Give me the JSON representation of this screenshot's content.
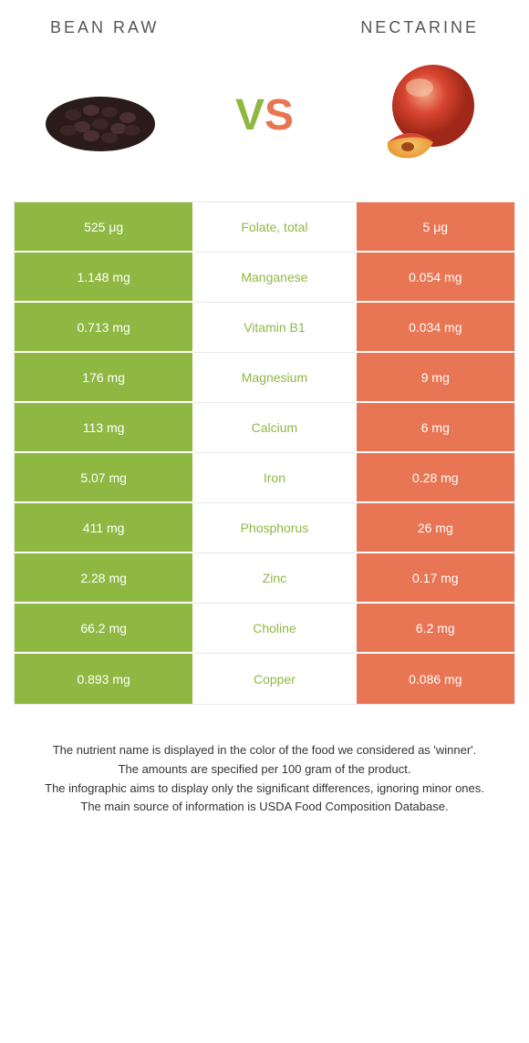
{
  "header": {
    "left_title": "BEAN RAW",
    "right_title": "NECTARINE"
  },
  "vs": {
    "v": "V",
    "s": "S"
  },
  "colors": {
    "left": "#8fb842",
    "right": "#e87553",
    "border": "#e8e8e8",
    "text": "#333",
    "background": "#ffffff"
  },
  "rows": [
    {
      "left": "525 μg",
      "label": "Folate, total",
      "right": "5 μg",
      "winner": "left"
    },
    {
      "left": "1.148 mg",
      "label": "Manganese",
      "right": "0.054 mg",
      "winner": "left"
    },
    {
      "left": "0.713 mg",
      "label": "Vitamin B1",
      "right": "0.034 mg",
      "winner": "left"
    },
    {
      "left": "176 mg",
      "label": "Magnesium",
      "right": "9 mg",
      "winner": "left"
    },
    {
      "left": "113 mg",
      "label": "Calcium",
      "right": "6 mg",
      "winner": "left"
    },
    {
      "left": "5.07 mg",
      "label": "Iron",
      "right": "0.28 mg",
      "winner": "left"
    },
    {
      "left": "411 mg",
      "label": "Phosphorus",
      "right": "26 mg",
      "winner": "left"
    },
    {
      "left": "2.28 mg",
      "label": "Zinc",
      "right": "0.17 mg",
      "winner": "left"
    },
    {
      "left": "66.2 mg",
      "label": "Choline",
      "right": "6.2 mg",
      "winner": "left"
    },
    {
      "left": "0.893 mg",
      "label": "Copper",
      "right": "0.086 mg",
      "winner": "left"
    }
  ],
  "footer": {
    "line1": "The nutrient name is displayed in the color of the food we considered as 'winner'.",
    "line2": "The amounts are specified per 100 gram of the product.",
    "line3": "The infographic aims to display only the significant differences, ignoring minor ones.",
    "line4": "The main source of information is USDA Food Composition Database."
  }
}
